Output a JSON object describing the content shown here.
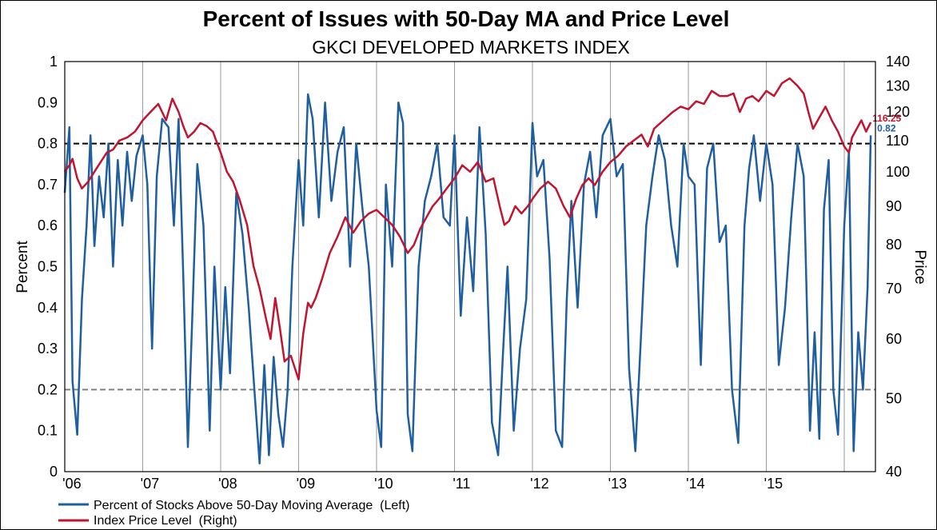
{
  "chart_data": {
    "type": "line",
    "title": "Percent of Issues with 50-Day MA and Price Level",
    "subtitle": "GKCI DEVELOPED MARKETS INDEX",
    "ylabel_left": "Percent",
    "ylabel_right": "Price",
    "ylim_left": [
      0,
      1
    ],
    "ylim_right": [
      40,
      140
    ],
    "y_scale_right": "log",
    "yticks_left": [
      "0",
      "0.1",
      "0.2",
      "0.3",
      "0.4",
      "0.5",
      "0.6",
      "0.7",
      "0.8",
      "0.9",
      "1"
    ],
    "yticks_right": [
      "40",
      "50",
      "60",
      "70",
      "80",
      "90",
      "100",
      "110",
      "120",
      "130",
      "140"
    ],
    "xtick_labels": [
      "'06",
      "'07",
      "'08",
      "'09",
      "'10",
      "'11",
      "'12",
      "'13",
      "'14",
      "'15"
    ],
    "xlim": [
      2006.0,
      2016.4
    ],
    "grid": "vertical",
    "legend_position": "bottom-left",
    "reference_lines": [
      {
        "axis": "left",
        "value": 0.8,
        "color": "#000000",
        "style": "dashed"
      },
      {
        "axis": "left",
        "value": 0.2,
        "color": "#808080",
        "style": "dashed"
      }
    ],
    "series": [
      {
        "name": "Percent of Stocks Above 50-Day Moving Average  (Left)",
        "axis": "left",
        "color": "#1f5fa0",
        "end_label": "0.82",
        "x": [
          2006.0,
          2006.06,
          2006.1,
          2006.16,
          2006.22,
          2006.28,
          2006.33,
          2006.38,
          2006.44,
          2006.5,
          2006.56,
          2006.62,
          2006.68,
          2006.74,
          2006.8,
          2006.86,
          2006.92,
          2007.0,
          2007.06,
          2007.12,
          2007.18,
          2007.25,
          2007.33,
          2007.4,
          2007.46,
          2007.52,
          2007.58,
          2007.64,
          2007.7,
          2007.78,
          2007.86,
          2007.92,
          2008.0,
          2008.06,
          2008.12,
          2008.2,
          2008.28,
          2008.36,
          2008.44,
          2008.5,
          2008.56,
          2008.62,
          2008.68,
          2008.74,
          2008.8,
          2008.86,
          2008.92,
          2009.0,
          2009.06,
          2009.12,
          2009.18,
          2009.26,
          2009.34,
          2009.42,
          2009.5,
          2009.58,
          2009.66,
          2009.74,
          2009.82,
          2009.9,
          2010.0,
          2010.06,
          2010.12,
          2010.2,
          2010.28,
          2010.34,
          2010.4,
          2010.46,
          2010.54,
          2010.62,
          2010.7,
          2010.78,
          2010.86,
          2010.94,
          2011.0,
          2011.08,
          2011.16,
          2011.24,
          2011.32,
          2011.4,
          2011.48,
          2011.56,
          2011.62,
          2011.68,
          2011.76,
          2011.84,
          2011.92,
          2012.0,
          2012.06,
          2012.14,
          2012.22,
          2012.3,
          2012.38,
          2012.44,
          2012.5,
          2012.58,
          2012.66,
          2012.74,
          2012.82,
          2012.9,
          2013.0,
          2013.08,
          2013.16,
          2013.24,
          2013.32,
          2013.4,
          2013.46,
          2013.54,
          2013.62,
          2013.7,
          2013.78,
          2013.86,
          2013.94,
          2014.0,
          2014.08,
          2014.16,
          2014.24,
          2014.32,
          2014.4,
          2014.48,
          2014.56,
          2014.64,
          2014.72,
          2014.78,
          2014.84,
          2014.92,
          2015.0,
          2015.08,
          2015.16,
          2015.24,
          2015.32,
          2015.4,
          2015.48,
          2015.56,
          2015.62,
          2015.68,
          2015.74,
          2015.8,
          2015.86,
          2015.92,
          2016.0,
          2016.06,
          2016.12,
          2016.18,
          2016.24,
          2016.3,
          2016.34
        ],
        "y": [
          0.68,
          0.84,
          0.22,
          0.09,
          0.42,
          0.6,
          0.82,
          0.55,
          0.72,
          0.62,
          0.8,
          0.5,
          0.76,
          0.6,
          0.78,
          0.66,
          0.77,
          0.82,
          0.7,
          0.3,
          0.72,
          0.86,
          0.84,
          0.6,
          0.86,
          0.48,
          0.06,
          0.4,
          0.75,
          0.6,
          0.1,
          0.5,
          0.2,
          0.45,
          0.24,
          0.68,
          0.58,
          0.4,
          0.18,
          0.02,
          0.26,
          0.04,
          0.28,
          0.14,
          0.06,
          0.2,
          0.5,
          0.76,
          0.6,
          0.92,
          0.86,
          0.62,
          0.9,
          0.66,
          0.78,
          0.84,
          0.5,
          0.8,
          0.64,
          0.5,
          0.15,
          0.06,
          0.7,
          0.5,
          0.9,
          0.85,
          0.14,
          0.05,
          0.5,
          0.66,
          0.72,
          0.8,
          0.62,
          0.6,
          0.82,
          0.38,
          0.62,
          0.44,
          0.84,
          0.58,
          0.12,
          0.04,
          0.28,
          0.5,
          0.1,
          0.3,
          0.42,
          0.85,
          0.72,
          0.76,
          0.52,
          0.1,
          0.06,
          0.42,
          0.66,
          0.4,
          0.7,
          0.78,
          0.62,
          0.82,
          0.86,
          0.72,
          0.75,
          0.25,
          0.05,
          0.36,
          0.6,
          0.72,
          0.82,
          0.76,
          0.6,
          0.5,
          0.8,
          0.72,
          0.7,
          0.26,
          0.74,
          0.8,
          0.56,
          0.6,
          0.2,
          0.07,
          0.6,
          0.74,
          0.82,
          0.66,
          0.8,
          0.7,
          0.26,
          0.4,
          0.62,
          0.8,
          0.72,
          0.1,
          0.34,
          0.08,
          0.64,
          0.76,
          0.2,
          0.09,
          0.6,
          0.78,
          0.05,
          0.34,
          0.2,
          0.45,
          0.82
        ]
      },
      {
        "name": "Index Price Level  (Right)",
        "axis": "right",
        "color": "#c0152f",
        "end_label": "116.25",
        "x": [
          2006.0,
          2006.06,
          2006.1,
          2006.16,
          2006.22,
          2006.3,
          2006.38,
          2006.46,
          2006.54,
          2006.62,
          2006.7,
          2006.8,
          2006.9,
          2007.0,
          2007.1,
          2007.2,
          2007.3,
          2007.38,
          2007.46,
          2007.52,
          2007.58,
          2007.66,
          2007.74,
          2007.82,
          2007.9,
          2008.0,
          2008.08,
          2008.16,
          2008.24,
          2008.34,
          2008.42,
          2008.5,
          2008.58,
          2008.64,
          2008.7,
          2008.76,
          2008.82,
          2008.9,
          2009.0,
          2009.06,
          2009.12,
          2009.16,
          2009.22,
          2009.3,
          2009.4,
          2009.5,
          2009.6,
          2009.7,
          2009.8,
          2009.9,
          2010.0,
          2010.1,
          2010.2,
          2010.3,
          2010.4,
          2010.48,
          2010.56,
          2010.64,
          2010.72,
          2010.8,
          2010.9,
          2011.0,
          2011.1,
          2011.2,
          2011.3,
          2011.4,
          2011.5,
          2011.58,
          2011.64,
          2011.7,
          2011.78,
          2011.86,
          2011.94,
          2012.0,
          2012.1,
          2012.2,
          2012.3,
          2012.4,
          2012.48,
          2012.56,
          2012.64,
          2012.72,
          2012.8,
          2012.9,
          2013.0,
          2013.1,
          2013.2,
          2013.3,
          2013.4,
          2013.48,
          2013.56,
          2013.64,
          2013.72,
          2013.8,
          2013.9,
          2014.0,
          2014.1,
          2014.2,
          2014.3,
          2014.4,
          2014.5,
          2014.58,
          2014.66,
          2014.74,
          2014.82,
          2014.9,
          2015.0,
          2015.1,
          2015.2,
          2015.3,
          2015.4,
          2015.48,
          2015.54,
          2015.6,
          2015.68,
          2015.76,
          2015.84,
          2015.92,
          2016.0,
          2016.06,
          2016.1,
          2016.16,
          2016.22,
          2016.28,
          2016.34
        ],
        "y": [
          100,
          102,
          104,
          98,
          95,
          97,
          100,
          103,
          106,
          107,
          110,
          111,
          113,
          117,
          120,
          123,
          117,
          125,
          120,
          115,
          111,
          113,
          116,
          115,
          113,
          106,
          100,
          97,
          92,
          85,
          75,
          70,
          64,
          60,
          68,
          62,
          56,
          57,
          53,
          61,
          67,
          66,
          68,
          72,
          78,
          82,
          87,
          83,
          86,
          88,
          89,
          87,
          85,
          82,
          78,
          80,
          84,
          87,
          90,
          92,
          95,
          98,
          102,
          100,
          103,
          97,
          98,
          90,
          85,
          86,
          90,
          88,
          90,
          92,
          95,
          97,
          95,
          90,
          87,
          92,
          96,
          98,
          96,
          100,
          103,
          105,
          108,
          110,
          112,
          108,
          114,
          116,
          118,
          120,
          122,
          121,
          124,
          123,
          128,
          126,
          126,
          127,
          120,
          125,
          126,
          124,
          128,
          126,
          131,
          133,
          130,
          127,
          120,
          114,
          118,
          122,
          117,
          113,
          108,
          106,
          111,
          114,
          117,
          113,
          116.25
        ]
      }
    ]
  }
}
